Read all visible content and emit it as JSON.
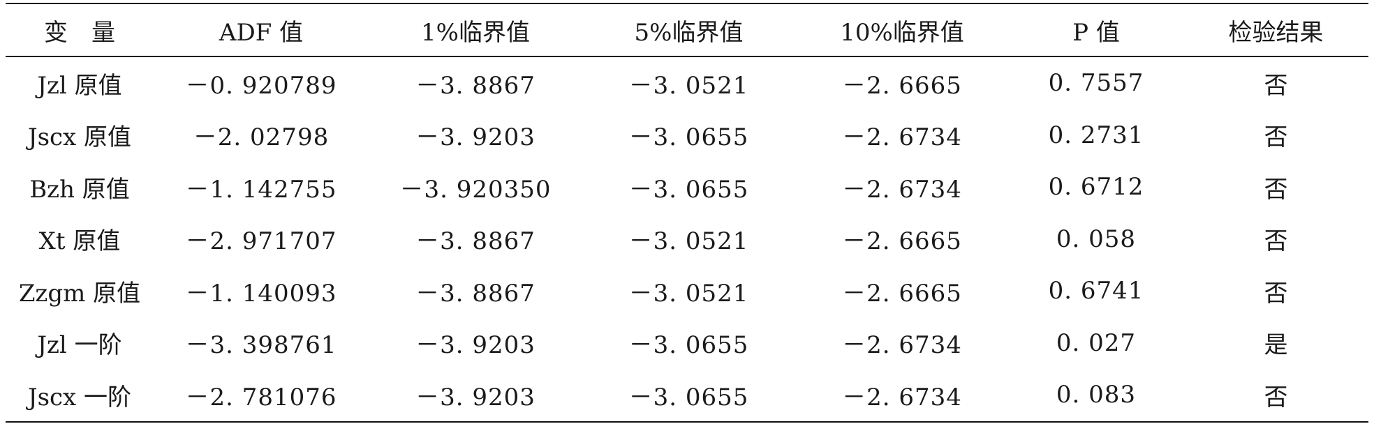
{
  "table": {
    "headers": [
      "变　量",
      "ADF 值",
      "1%临界值",
      "5%临界值",
      "10%临界值",
      "P 值",
      "检验结果"
    ],
    "rows": [
      [
        "Jzl 原值",
        "－0. 920789",
        "－3. 8867",
        "－3. 0521",
        "－2. 6665",
        "0. 7557",
        "否"
      ],
      [
        "Jscx 原值",
        "－2. 02798",
        "－3. 9203",
        "－3. 0655",
        "－2. 6734",
        "0. 2731",
        "否"
      ],
      [
        "Bzh 原值",
        "－1. 142755",
        "－3. 920350",
        "－3. 0655",
        "－2. 6734",
        "0. 6712",
        "否"
      ],
      [
        "Xt 原值",
        "－2. 971707",
        "－3. 8867",
        "－3. 0521",
        "－2. 6665",
        "0. 058",
        "否"
      ],
      [
        "Zzgm 原值",
        "－1. 140093",
        "－3. 8867",
        "－3. 0521",
        "－2. 6665",
        "0. 6741",
        "否"
      ],
      [
        "Jzl 一阶",
        "－3. 398761",
        "－3. 9203",
        "－3. 0655",
        "－2. 6734",
        "0. 027",
        "是"
      ],
      [
        "Jscx 一阶",
        "－2. 781076",
        "－3. 9203",
        "－3. 0655",
        "－2. 6734",
        "0. 083",
        "否"
      ]
    ]
  }
}
